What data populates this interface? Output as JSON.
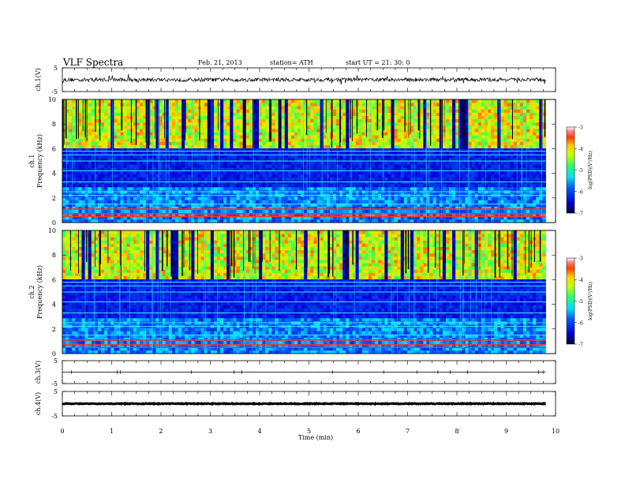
{
  "header": {
    "title": "VLF  Spectra",
    "date": "Feb. 21, 2013",
    "station": "station= ATH",
    "start": "start  UT  =    21: 30: 0"
  },
  "chart_data": [
    {
      "type": "line",
      "name": "ch1-waveform",
      "ylabel": "ch.1(V)",
      "ylim": [
        -5,
        5
      ],
      "yticks": [
        "5",
        "-5"
      ],
      "xlim": [
        0,
        10
      ],
      "baseline": 0,
      "noise_amplitude": 0.8,
      "data_end_min": 9.8
    },
    {
      "type": "heatmap",
      "name": "ch1-spectrogram",
      "ylabel": "ch.1\nFrequency  (kHz)",
      "ylim": [
        0,
        10
      ],
      "yticks": [
        "0",
        "2",
        "4",
        "6",
        "8",
        "10"
      ],
      "xlim": [
        0,
        10
      ],
      "data_end_min": 9.8,
      "colorbar": {
        "label": "log(PSD)(V²/Hz)",
        "range": [
          -7,
          -3
        ],
        "ticks": [
          "-3",
          "-4",
          "-5",
          "-6",
          "-7"
        ]
      },
      "bands_khz": [
        0.5,
        0.7,
        1.1,
        1.5,
        2.2,
        2.5,
        3.3,
        4.2,
        5.0,
        5.5,
        5.8
      ]
    },
    {
      "type": "heatmap",
      "name": "ch2-spectrogram",
      "ylabel": "ch.2\nFrequency  (kHz)",
      "ylim": [
        0,
        10
      ],
      "yticks": [
        "0",
        "2",
        "4",
        "6",
        "8",
        "10"
      ],
      "xlim": [
        0,
        10
      ],
      "data_end_min": 9.8,
      "colorbar": {
        "label": "log(PSD)(V²/Hz)",
        "range": [
          -7,
          -3
        ],
        "ticks": [
          "-3",
          "-4",
          "-5",
          "-6",
          "-7"
        ]
      },
      "bands_khz": [
        0.5,
        0.7,
        1.1,
        1.5,
        2.2,
        2.5,
        3.3,
        4.2,
        5.0,
        5.5,
        5.8
      ]
    },
    {
      "type": "line",
      "name": "ch3-waveform",
      "ylabel": "ch.3(V)",
      "ylim": [
        -5,
        5
      ],
      "yticks": [
        "5",
        "-5"
      ],
      "xlim": [
        0,
        10
      ],
      "baseline": 0,
      "noise_amplitude": 0.05,
      "data_end_min": 9.8
    },
    {
      "type": "line",
      "name": "ch4-waveform",
      "ylabel": "ch.4(V)",
      "ylim": [
        -5,
        5
      ],
      "yticks": [
        "5",
        "-5"
      ],
      "xlim": [
        0,
        10
      ],
      "baseline": 0,
      "noise_amplitude": 0.15,
      "data_end_min": 9.8
    }
  ],
  "xaxis": {
    "label": "Time  (min)",
    "ticks": [
      "0",
      "1",
      "2",
      "3",
      "4",
      "5",
      "6",
      "7",
      "8",
      "9",
      "10"
    ]
  }
}
